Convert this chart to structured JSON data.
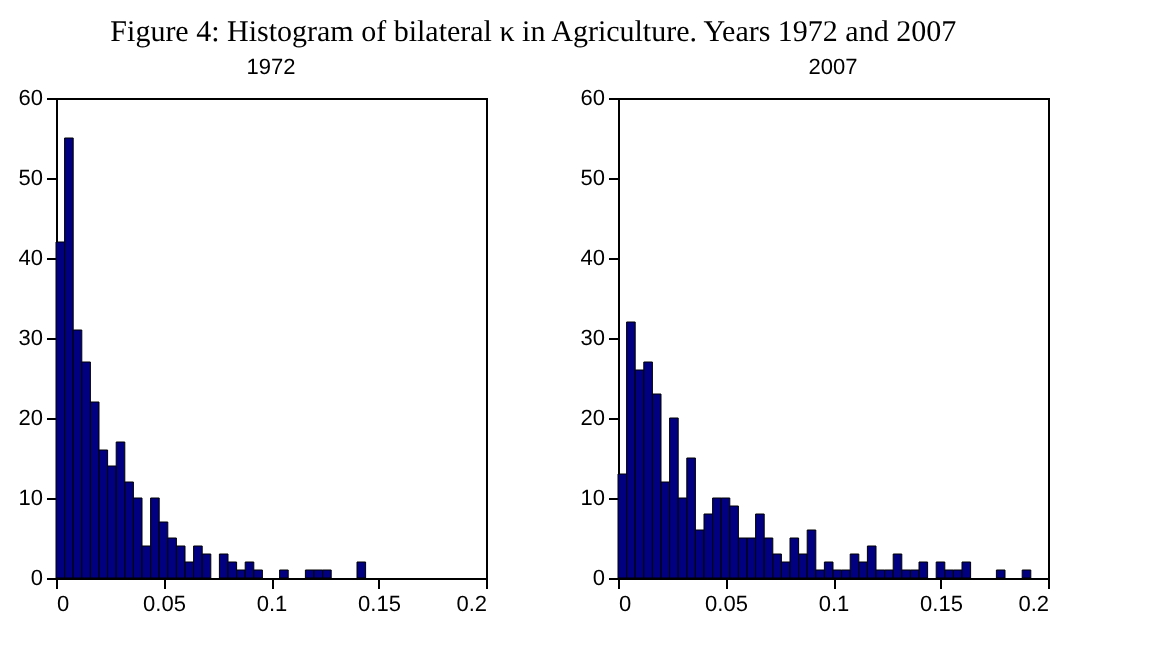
{
  "chart_data": [
    {
      "type": "histogram",
      "title": "Figure 4: Histogram of bilateral κ in Agriculture. Years 1972 and 2007",
      "subtitle": "1972",
      "color": "#000080",
      "bins": [
        0,
        0.004,
        0.008,
        0.012,
        0.016,
        0.02,
        0.024,
        0.028,
        0.032,
        0.036,
        0.04,
        0.044,
        0.048,
        0.052,
        0.056,
        0.06,
        0.064,
        0.068,
        0.072,
        0.076,
        0.08,
        0.084,
        0.088,
        0.092,
        0.096,
        0.1,
        0.104,
        0.108,
        0.112,
        0.116,
        0.12,
        0.124,
        0.128,
        0.132,
        0.136,
        0.14,
        0.144,
        0.148,
        0.152,
        0.156,
        0.16,
        0.164,
        0.168,
        0.172,
        0.176,
        0.18,
        0.184,
        0.188,
        0.192,
        0.196,
        0.2
      ],
      "values": [
        42,
        55,
        31,
        27,
        22,
        16,
        14,
        17,
        12,
        10,
        4,
        10,
        7,
        5,
        4,
        2,
        4,
        3,
        0,
        3,
        2,
        1,
        2,
        1,
        0,
        0,
        1,
        0,
        0,
        1,
        1,
        1,
        0,
        0,
        0,
        2,
        0,
        0,
        0,
        0,
        0,
        0,
        0,
        0,
        0,
        0,
        0,
        0,
        0,
        0
      ],
      "xlim": [
        0,
        0.2
      ],
      "xticks": [
        0,
        0.05,
        0.1,
        0.15,
        0.2
      ],
      "ylim": [
        0,
        60
      ],
      "yticks": [
        0,
        10,
        20,
        30,
        40,
        50,
        60
      ],
      "grid": false
    },
    {
      "type": "histogram",
      "subtitle": "2007",
      "color": "#000080",
      "bins": [
        0,
        0.004,
        0.008,
        0.012,
        0.016,
        0.02,
        0.024,
        0.028,
        0.032,
        0.036,
        0.04,
        0.044,
        0.048,
        0.052,
        0.056,
        0.06,
        0.064,
        0.068,
        0.072,
        0.076,
        0.08,
        0.084,
        0.088,
        0.092,
        0.096,
        0.1,
        0.104,
        0.108,
        0.112,
        0.116,
        0.12,
        0.124,
        0.128,
        0.132,
        0.136,
        0.14,
        0.144,
        0.148,
        0.152,
        0.156,
        0.16,
        0.164,
        0.168,
        0.172,
        0.176,
        0.18,
        0.184,
        0.188,
        0.192,
        0.196,
        0.2
      ],
      "values": [
        13,
        32,
        26,
        27,
        23,
        12,
        20,
        10,
        15,
        6,
        8,
        10,
        10,
        9,
        5,
        5,
        8,
        5,
        3,
        2,
        5,
        3,
        6,
        1,
        2,
        1,
        1,
        3,
        2,
        4,
        1,
        1,
        3,
        1,
        1,
        2,
        0,
        2,
        1,
        1,
        2,
        0,
        0,
        0,
        1,
        0,
        0,
        1,
        0,
        0
      ],
      "xlim": [
        0,
        0.2
      ],
      "xticks": [
        0,
        0.05,
        0.1,
        0.15,
        0.2
      ],
      "ylim": [
        0,
        60
      ],
      "yticks": [
        0,
        10,
        20,
        30,
        40,
        50,
        60
      ],
      "grid": false
    }
  ]
}
